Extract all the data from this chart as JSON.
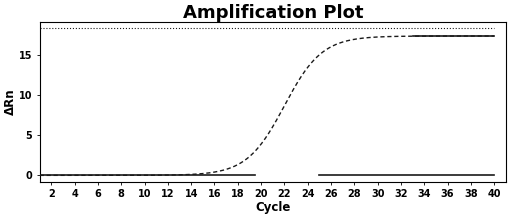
{
  "title": "Amplification Plot",
  "xlabel": "Cycle",
  "ylabel": "ΔRn",
  "xlim": [
    1,
    41
  ],
  "ylim": [
    -0.8,
    19
  ],
  "xticks": [
    2,
    4,
    6,
    8,
    10,
    12,
    14,
    16,
    18,
    20,
    22,
    24,
    26,
    28,
    30,
    32,
    34,
    36,
    38,
    40
  ],
  "yticks": [
    0,
    5,
    10,
    15
  ],
  "bg_color": "#ffffff",
  "line_color": "#1a1a1a",
  "title_fontsize": 13,
  "axis_fontsize": 8.5,
  "tick_fontsize": 7,
  "sigmoid_L": 17.3,
  "sigmoid_k": 0.62,
  "sigmoid_x0": 22.0,
  "baseline_y": 0.0,
  "plateau_y": 17.3,
  "top_ref_y": 18.3
}
